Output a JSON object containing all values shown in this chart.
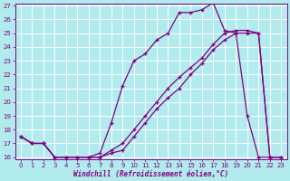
{
  "xlabel": "Windchill (Refroidissement éolien,°C)",
  "bg_color": "#b2ebee",
  "line_color": "#800080",
  "grid_color": "#ffffff",
  "x_values": [
    0,
    1,
    2,
    3,
    4,
    5,
    6,
    7,
    8,
    9,
    10,
    11,
    12,
    13,
    14,
    15,
    16,
    17,
    18,
    19,
    20,
    21,
    22,
    23
  ],
  "y_main": [
    17.5,
    17.0,
    17.0,
    16.0,
    16.0,
    16.0,
    16.0,
    16.3,
    18.5,
    21.2,
    23.0,
    23.5,
    24.5,
    25.0,
    26.5,
    26.5,
    26.7,
    27.2,
    25.2,
    25.0,
    19.0,
    16.0,
    16.0,
    16.0
  ],
  "y_line1": [
    17.5,
    17.0,
    17.0,
    16.0,
    16.0,
    16.0,
    16.0,
    16.0,
    16.3,
    16.5,
    17.5,
    18.5,
    19.5,
    20.3,
    21.0,
    22.0,
    22.8,
    23.8,
    24.5,
    25.0,
    25.0,
    25.0,
    16.0,
    16.0
  ],
  "y_line2": [
    17.5,
    17.0,
    17.0,
    16.0,
    16.0,
    16.0,
    16.0,
    16.0,
    16.5,
    17.0,
    18.0,
    19.0,
    20.0,
    21.0,
    21.8,
    22.5,
    23.2,
    24.2,
    25.0,
    25.2,
    25.2,
    25.0,
    16.0,
    16.0
  ],
  "ylim": [
    16,
    27
  ],
  "xlim": [
    -0.5,
    23.5
  ],
  "yticks": [
    16,
    17,
    18,
    19,
    20,
    21,
    22,
    23,
    24,
    25,
    26,
    27
  ],
  "xticks": [
    0,
    1,
    2,
    3,
    4,
    5,
    6,
    7,
    8,
    9,
    10,
    11,
    12,
    13,
    14,
    15,
    16,
    17,
    18,
    19,
    20,
    21,
    22,
    23
  ]
}
